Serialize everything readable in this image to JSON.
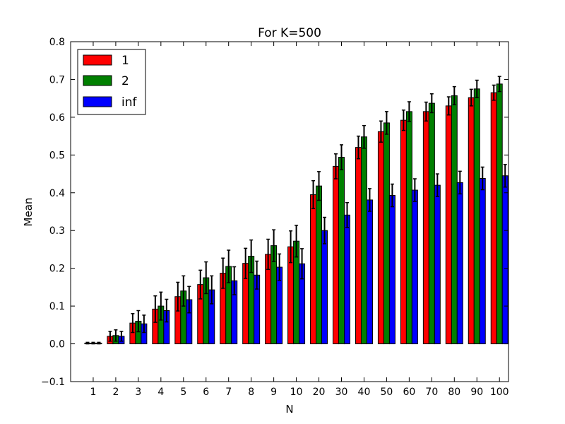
{
  "chart_data": {
    "type": "bar",
    "title": "For K=500",
    "xlabel": "N",
    "ylabel": "Mean",
    "ylim": [
      -0.1,
      0.8
    ],
    "yticks": [
      -0.1,
      0.0,
      0.1,
      0.2,
      0.3,
      0.4,
      0.5,
      0.6,
      0.7,
      0.8
    ],
    "ytick_labels": [
      "−0.1",
      "0.0",
      "0.1",
      "0.2",
      "0.3",
      "0.4",
      "0.5",
      "0.6",
      "0.7",
      "0.8"
    ],
    "categories": [
      "1",
      "2",
      "3",
      "4",
      "5",
      "6",
      "7",
      "8",
      "9",
      "10",
      "20",
      "30",
      "40",
      "50",
      "60",
      "70",
      "80",
      "90",
      "100"
    ],
    "series": [
      {
        "name": "1",
        "color": "#ff0000",
        "values": [
          0.002,
          0.02,
          0.055,
          0.092,
          0.125,
          0.157,
          0.187,
          0.213,
          0.237,
          0.257,
          0.395,
          0.47,
          0.52,
          0.562,
          0.592,
          0.615,
          0.63,
          0.652,
          0.665
        ],
        "errors": [
          0.002,
          0.013,
          0.025,
          0.035,
          0.038,
          0.038,
          0.04,
          0.04,
          0.04,
          0.042,
          0.037,
          0.033,
          0.03,
          0.028,
          0.027,
          0.025,
          0.024,
          0.022,
          0.02
        ]
      },
      {
        "name": "2",
        "color": "#008000",
        "values": [
          0.002,
          0.022,
          0.06,
          0.1,
          0.14,
          0.175,
          0.205,
          0.232,
          0.26,
          0.272,
          0.418,
          0.494,
          0.548,
          0.585,
          0.615,
          0.637,
          0.657,
          0.675,
          0.688
        ],
        "errors": [
          0.002,
          0.015,
          0.028,
          0.037,
          0.04,
          0.042,
          0.043,
          0.043,
          0.042,
          0.042,
          0.038,
          0.033,
          0.03,
          0.03,
          0.026,
          0.025,
          0.024,
          0.023,
          0.02
        ]
      },
      {
        "name": "inf",
        "color": "#0000ff",
        "values": [
          0.002,
          0.02,
          0.053,
          0.088,
          0.117,
          0.143,
          0.167,
          0.182,
          0.203,
          0.212,
          0.3,
          0.341,
          0.381,
          0.393,
          0.407,
          0.42,
          0.427,
          0.438,
          0.445
        ],
        "errors": [
          0.002,
          0.013,
          0.023,
          0.03,
          0.035,
          0.037,
          0.037,
          0.037,
          0.035,
          0.04,
          0.035,
          0.033,
          0.03,
          0.03,
          0.03,
          0.03,
          0.03,
          0.03,
          0.03
        ]
      }
    ],
    "legend": {
      "position": "top-left",
      "entries": [
        "1",
        "2",
        "inf"
      ]
    },
    "grid": false
  }
}
